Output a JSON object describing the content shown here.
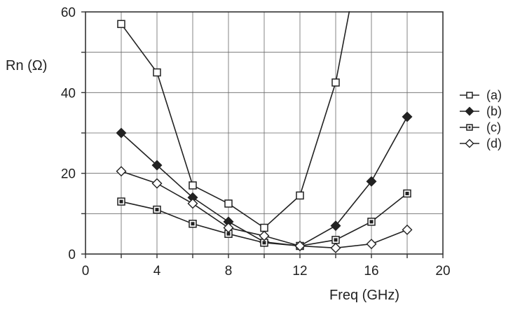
{
  "chart_data": {
    "type": "line",
    "title": "",
    "xlabel": "Freq  (GHz)",
    "ylabel": "Rn  (Ω)",
    "xlim": [
      0,
      20
    ],
    "ylim": [
      0,
      60
    ],
    "xticks": [
      "0",
      "4",
      "8",
      "12",
      "16",
      "20"
    ],
    "yticks": [
      "0",
      "20",
      "40",
      "60"
    ],
    "grid": true,
    "legend_position": "right",
    "series": [
      {
        "name": "(a)",
        "marker": "open-square",
        "x": [
          2,
          4,
          6,
          8,
          10,
          12,
          14,
          14.8
        ],
        "y": [
          57,
          45,
          17,
          12.5,
          6.5,
          14.5,
          42.5,
          61
        ]
      },
      {
        "name": "(b)",
        "marker": "filled-diamond",
        "x": [
          2,
          4,
          6,
          8,
          10,
          12,
          14,
          16,
          18
        ],
        "y": [
          30,
          22,
          14,
          8,
          3,
          2,
          7,
          18,
          34
        ]
      },
      {
        "name": "(c)",
        "marker": "filled-square",
        "x": [
          2,
          4,
          6,
          8,
          10,
          12,
          14,
          16,
          18
        ],
        "y": [
          13,
          11,
          7.5,
          5,
          2.8,
          2,
          3.5,
          8,
          15
        ]
      },
      {
        "name": "(d)",
        "marker": "open-diamond",
        "x": [
          2,
          4,
          6,
          8,
          10,
          12,
          14,
          16,
          18
        ],
        "y": [
          20.5,
          17.5,
          12.5,
          6.5,
          4.5,
          2,
          1.5,
          2.5,
          6
        ]
      }
    ]
  }
}
